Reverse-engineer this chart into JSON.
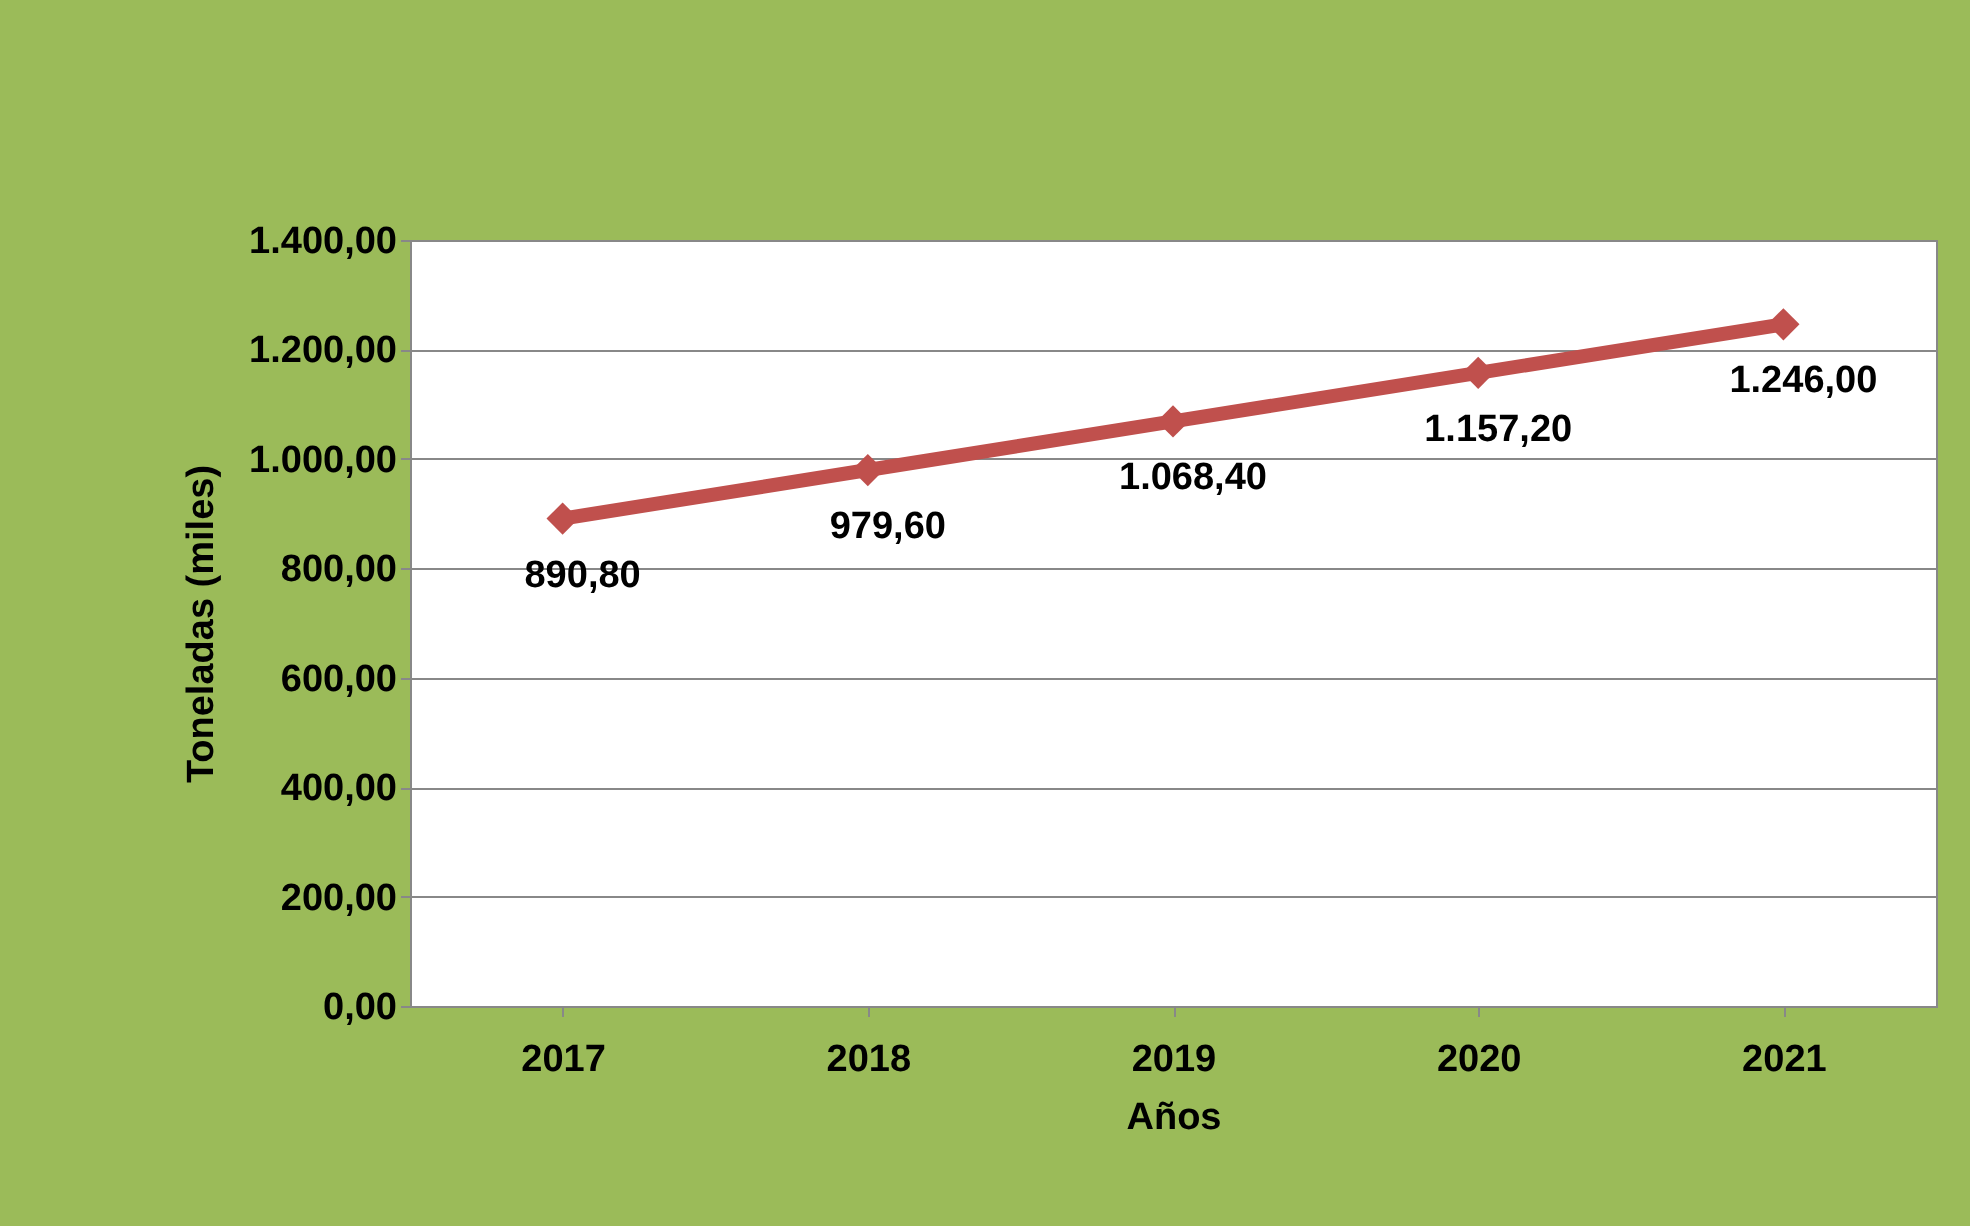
{
  "chart_data": {
    "type": "line",
    "xlabel": "Años",
    "ylabel": "Toneladas (miles)",
    "categories": [
      "2017",
      "2018",
      "2019",
      "2020",
      "2021"
    ],
    "series": [
      {
        "color": "#c0504d",
        "values": [
          890.8,
          979.6,
          1068.4,
          1157.2,
          1246.0
        ],
        "value_labels": [
          "890,80",
          "979,60",
          "1.068,40",
          "1.157,20",
          "1.246,00"
        ]
      }
    ],
    "ylim": [
      0,
      1400
    ],
    "yticks": [
      {
        "value": 0,
        "label": "0,00"
      },
      {
        "value": 200,
        "label": "200,00"
      },
      {
        "value": 400,
        "label": "400,00"
      },
      {
        "value": 600,
        "label": "600,00"
      },
      {
        "value": 800,
        "label": "800,00"
      },
      {
        "value": 1000,
        "label": "1.000,00"
      },
      {
        "value": 1200,
        "label": "1.200,00"
      },
      {
        "value": 1400,
        "label": "1.400,00"
      }
    ],
    "grid": "y",
    "marker": "diamond",
    "line_style": "solid"
  }
}
